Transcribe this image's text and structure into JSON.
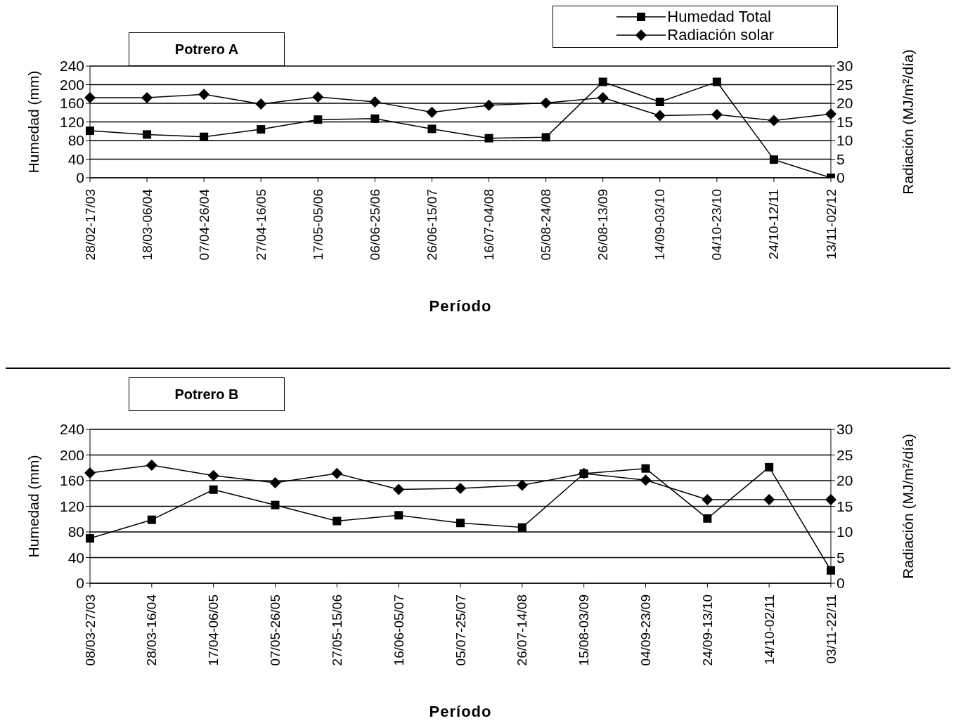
{
  "chart_data": [
    {
      "type": "line",
      "title": "Potrero A",
      "xlabel": "Período",
      "ylabel": "Humedad (mm)",
      "y2label": "Radiación  (MJ/m²/día)",
      "categories": [
        "28/02-17/03",
        "18/03-06/04",
        "07/04-26/04",
        "27/04-16/05",
        "17/05-05/06",
        "06/06-25/06",
        "26/06-15/07",
        "16/07-04/08",
        "05/08-24/08",
        "26/08-13/09",
        "14/09-03/10",
        "04/10-23/10",
        "24/10-12/11",
        "13/11-02/12"
      ],
      "series": [
        {
          "name": "Humedad Total",
          "color": "#000000",
          "marker": "square",
          "values": [
            101,
            93,
            88,
            104,
            125,
            127,
            105,
            85,
            87,
            206,
            163,
            206,
            39,
            0
          ]
        },
        {
          "name": "Radiación solar",
          "color": "#000000",
          "marker": "diamond",
          "axis": "y2",
          "values": [
            21.5,
            21.5,
            22.4,
            19.8,
            21.7,
            20.4,
            17.6,
            19.5,
            20.1,
            21.5,
            16.7,
            17.0,
            15.4,
            17.1
          ]
        }
      ],
      "ylim": [
        0,
        240
      ],
      "yticks": [
        0,
        40,
        80,
        120,
        160,
        200,
        240
      ],
      "y2lim": [
        0,
        30
      ],
      "y2ticks": [
        0,
        5,
        10,
        15,
        20,
        25,
        30
      ],
      "grid": "y",
      "legend": "top right",
      "line_style": "solid"
    },
    {
      "type": "line",
      "title": "Potrero B",
      "xlabel": "Período",
      "ylabel": "Humedad (mm)",
      "y2label": "Radiación  (MJ/m²/día)",
      "categories": [
        "08/03-27/03",
        "28/03-16/04",
        "17/04-06/05",
        "07/05-26/05",
        "27/05-15/06",
        "16/06-05/07",
        "05/07-25/07",
        "26/07-14/08",
        "15/08-03/09",
        "04/09-23/09",
        "24/09-13/10",
        "14/10-02/11",
        "03/11-22/11"
      ],
      "series": [
        {
          "color": "#000000",
          "marker": "square",
          "values": [
            70,
            99,
            146,
            122,
            97,
            106,
            94,
            87,
            171,
            179,
            101,
            181,
            20
          ]
        },
        {
          "color": "#000000",
          "marker": "diamond",
          "axis": "y2",
          "values": [
            21.5,
            23.0,
            21.0,
            19.6,
            21.4,
            18.3,
            18.5,
            19.1,
            21.4,
            20.1,
            16.3,
            16.3,
            16.3
          ]
        }
      ],
      "ylim": [
        0,
        240
      ],
      "yticks": [
        0,
        40,
        80,
        120,
        160,
        200,
        240
      ],
      "y2lim": [
        0,
        30
      ],
      "y2ticks": [
        0,
        5,
        10,
        15,
        20,
        25,
        30
      ],
      "grid": "y",
      "line_style": "solid"
    }
  ]
}
